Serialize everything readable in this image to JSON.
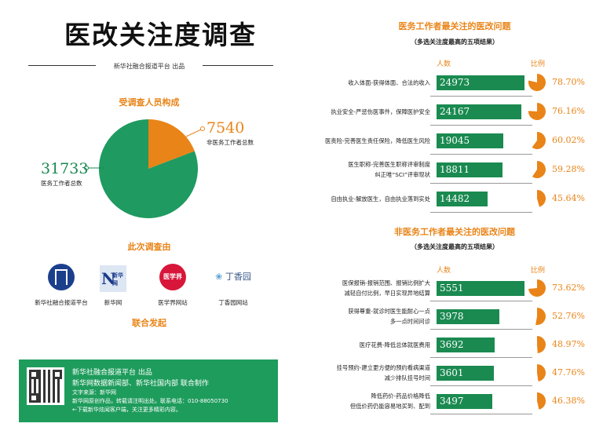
{
  "page": {
    "title": "医改关注度调查",
    "producer_line": "新华社融合报道平台  出品"
  },
  "left": {
    "section_title": "受调查人员构成",
    "surveyed_by_title": "此次调查由",
    "joint_label": "联合发起",
    "logos": [
      {
        "label": "新华社融合报道平台",
        "icon": "xinhua-platform-logo-icon",
        "mark_text": ""
      },
      {
        "label": "新华网",
        "icon": "xinhuanet-logo-icon",
        "mark_text": "新华网"
      },
      {
        "label": "医学界网站",
        "icon": "yixuejie-logo-icon",
        "mark_text": "医学界"
      },
      {
        "label": "丁香园网站",
        "icon": "dingxiangyuan-logo-icon",
        "mark_text": "丁香园"
      }
    ],
    "footer": {
      "lines": [
        "新华社融合报道平台 出品",
        "新华网数据新闻部、新华社国内部  联合制作",
        "文字来源：新华网",
        "新华网原创作品，转载请注明出处。联系电话：010-88050730",
        "←下载新华炫闻客户端，关注更多精彩内容。"
      ],
      "qr_icon": "qr-code-icon"
    }
  },
  "colors": {
    "accent": "#e98418",
    "green": "#1a8a50",
    "footer_green": "#1e9c5c",
    "pie_green": "#1f9a60"
  },
  "chart_data": [
    {
      "type": "pie",
      "title": "受调查人员构成",
      "slices": [
        {
          "name": "非医务工作者总数",
          "value": 7540,
          "color": "#e98418"
        },
        {
          "name": "医务工作者总数",
          "value": 31733,
          "color": "#1f9a60"
        }
      ]
    },
    {
      "type": "bar",
      "title": "医务工作者最关注的医改问题",
      "subtitle": "（多选关注度最高的五项结果）",
      "count_header": "人数",
      "ratio_header": "比例",
      "categories": [
        [
          "收入体面-获得体面、合法的收入"
        ],
        [
          "执业安全-严惩伤医事件，保障医护安全"
        ],
        [
          "医责险-完善医生责任保险，降低医生风险"
        ],
        [
          "医生职称-完善医生职称评审制度",
          "纠正唯“SCI”评审现状"
        ],
        [
          "自由执业-解放医生，自由执业落到实处"
        ]
      ],
      "values": [
        24973,
        24167,
        19045,
        18811,
        14482
      ],
      "percent_labels": [
        "78.70%",
        "76.16%",
        "60.02%",
        "59.28%",
        "45.64%"
      ],
      "percents": [
        78.7,
        76.16,
        60.02,
        59.28,
        45.64
      ]
    },
    {
      "type": "bar",
      "title": "非医务工作者最关注的医改问题",
      "subtitle": "（多选关注度最高的五项结果）",
      "count_header": "人数",
      "ratio_header": "比例",
      "categories": [
        [
          "医保报销-报销范围、报销比例扩大",
          "减轻自付比例，早日实现异地结算"
        ],
        [
          "获得尊重-就诊时医生能耐心一点",
          "多一点时间问诊"
        ],
        [
          "医疗花费-降低总体就医费用"
        ],
        [
          "挂号预约-建立更方便的预约看病渠道",
          "减少排队挂号时间"
        ],
        [
          "降低药价-药品价格降低",
          "但低价药仍能容易地买到、配到"
        ]
      ],
      "values": [
        5551,
        3978,
        3692,
        3601,
        3497
      ],
      "percent_labels": [
        "73.62%",
        "52.76%",
        "48.97%",
        "47.76%",
        "46.38%"
      ],
      "percents": [
        73.62,
        52.76,
        48.97,
        47.76,
        46.38
      ]
    }
  ]
}
